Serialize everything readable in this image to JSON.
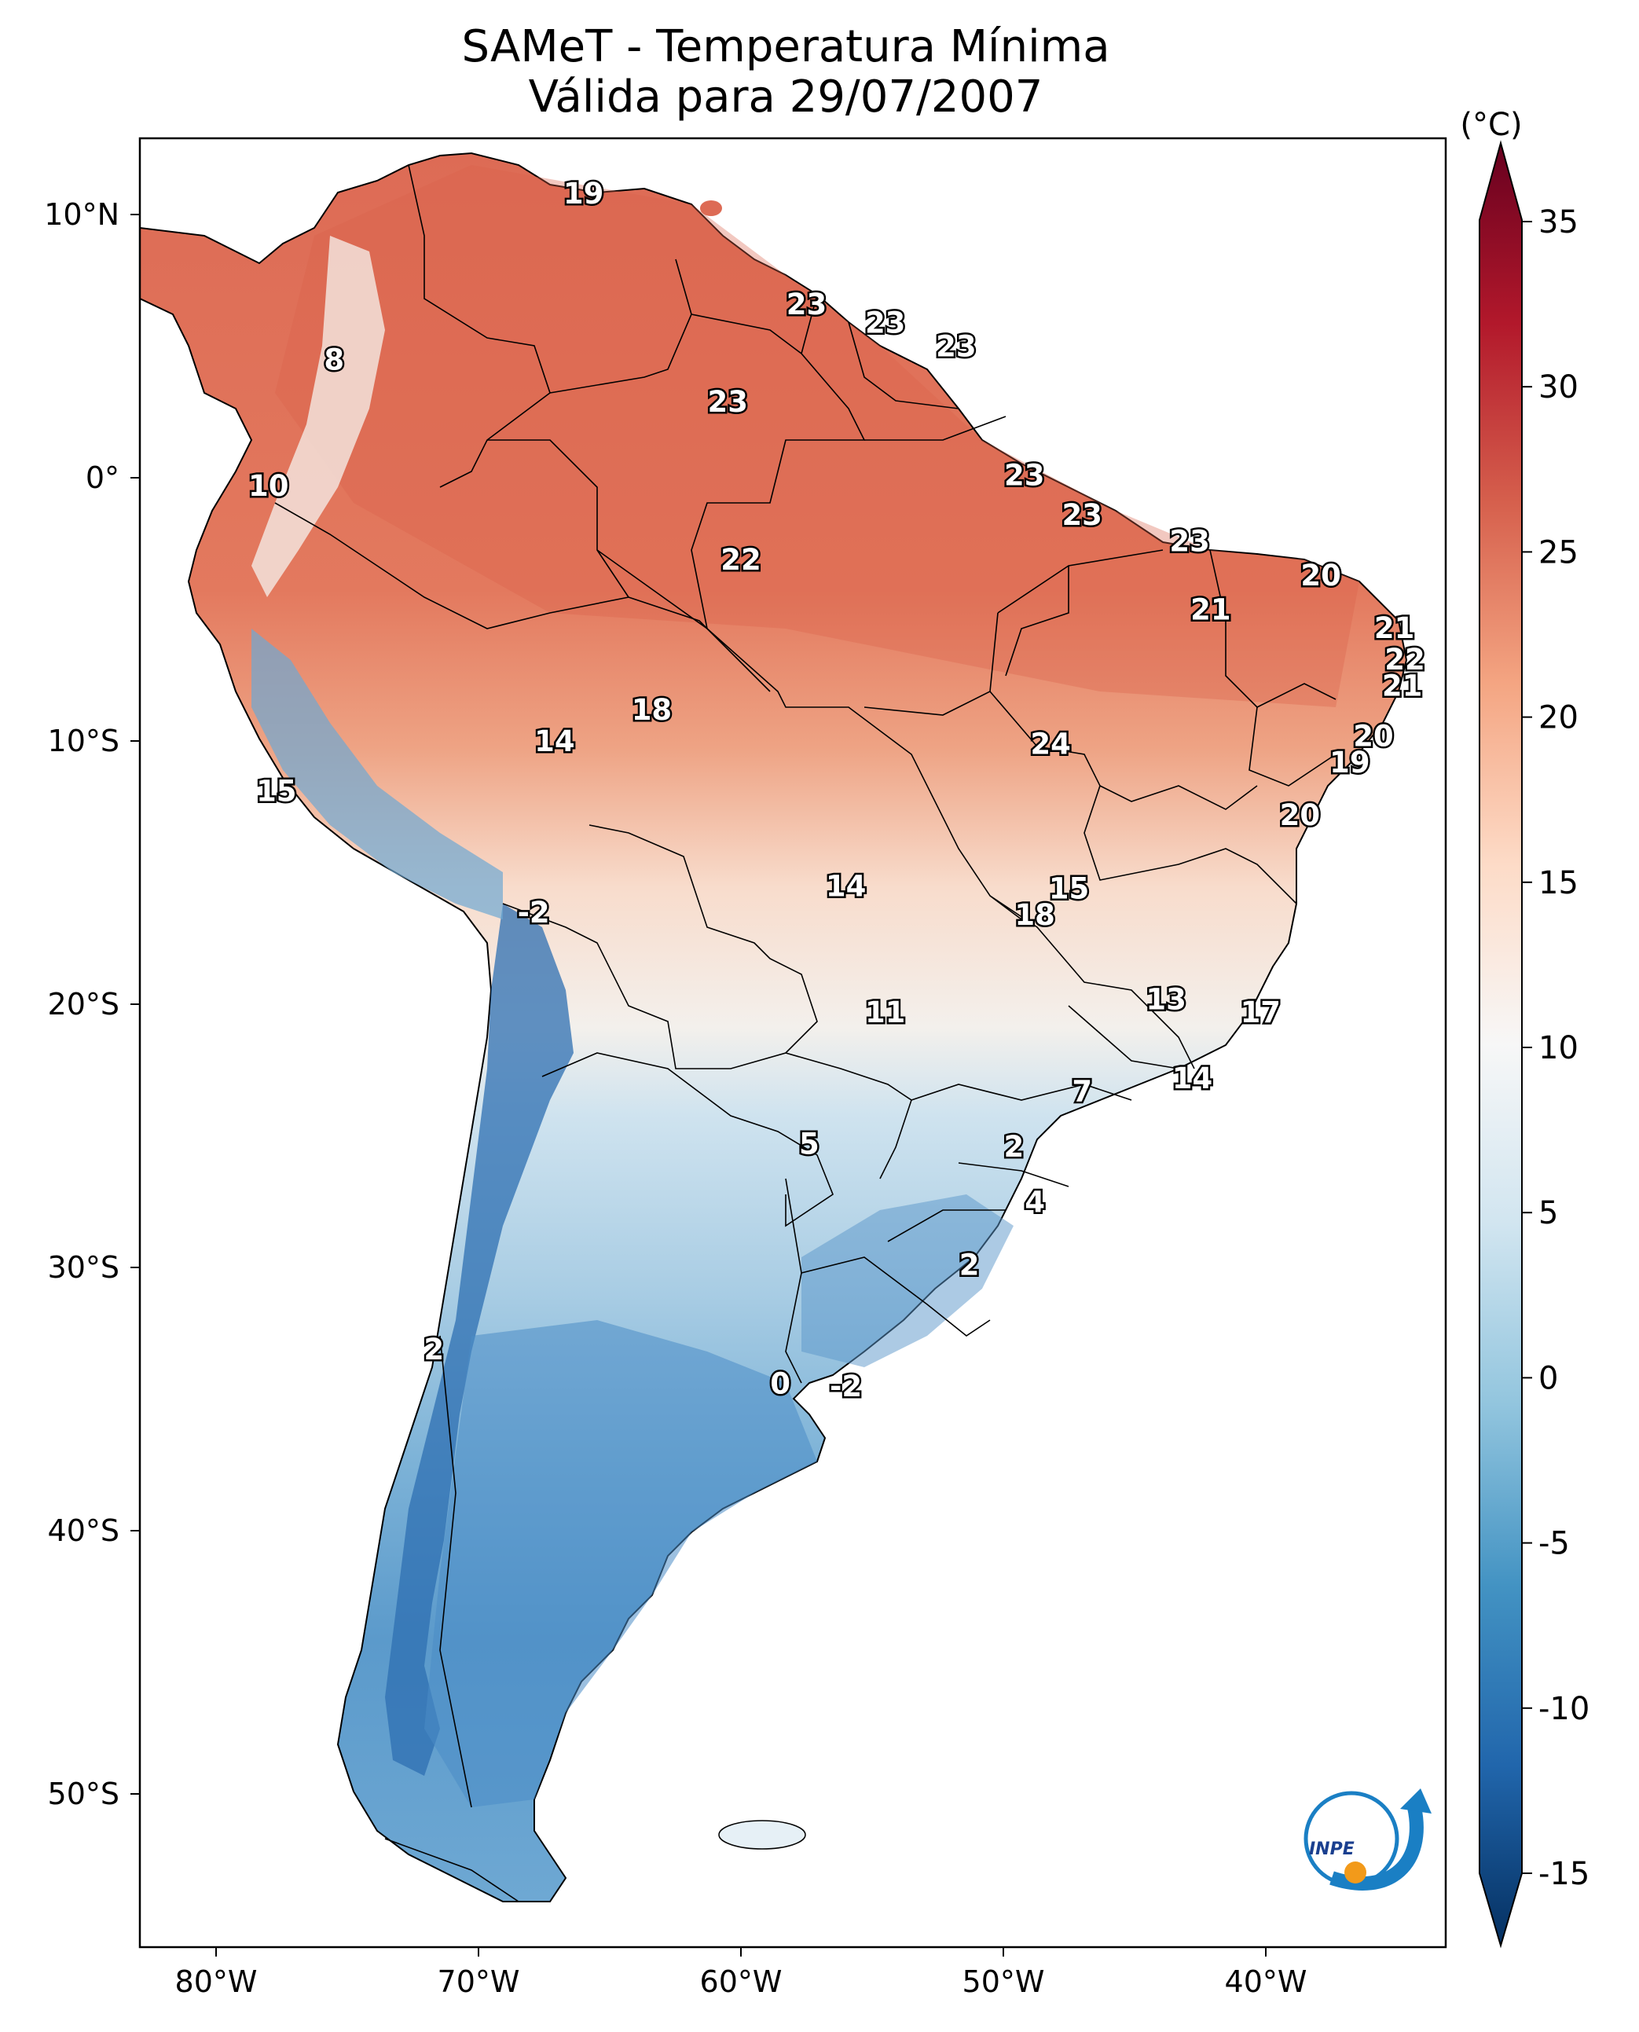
{
  "title": {
    "line1": "SAMeT - Temperatura Mínima",
    "line2": "Válida para 29/07/2007"
  },
  "colorbar": {
    "unit": "(°C)",
    "min": -15,
    "max": 35,
    "ticks": [
      "35",
      "30",
      "25",
      "20",
      "15",
      "10",
      "5",
      "0",
      "-5",
      "-10",
      "-15"
    ],
    "colors": [
      "#67001f",
      "#b2182b",
      "#d6604d",
      "#f4a582",
      "#fddbc7",
      "#f7f7f7",
      "#d1e5f0",
      "#92c5de",
      "#4393c3",
      "#2166ac",
      "#053061"
    ]
  },
  "axes": {
    "lon_ticks": [
      "80°W",
      "70°W",
      "60°W",
      "50°W",
      "40°W"
    ],
    "lat_ticks": [
      "10°N",
      "0°",
      "10°S",
      "20°S",
      "30°S",
      "40°S",
      "50°S"
    ]
  },
  "map_colors": {
    "north_warm": "#dd6b55",
    "center_warm": "#f0a080",
    "mild": "#f6d2c0",
    "neutral": "#f5f2ee",
    "cool": "#bcd8ea",
    "cold": "#5d9bcb",
    "andes": "#2e6fb1",
    "border": "#000000"
  },
  "logo": {
    "text": "INPE",
    "primary": "#1a7fc4",
    "accent": "#f29a1a"
  },
  "point_values": [
    {
      "t": "19",
      "lon": -66,
      "lat": 10.8
    },
    {
      "t": "8",
      "lon": -75.5,
      "lat": 4.5
    },
    {
      "t": "23",
      "lon": -57.5,
      "lat": 6.6
    },
    {
      "t": "23",
      "lon": -54.5,
      "lat": 5.9
    },
    {
      "t": "23",
      "lon": -51.8,
      "lat": 5.0
    },
    {
      "t": "23",
      "lon": -60.5,
      "lat": 2.9
    },
    {
      "t": "10",
      "lon": -78,
      "lat": -0.3
    },
    {
      "t": "23",
      "lon": -49.2,
      "lat": 0.1
    },
    {
      "t": "23",
      "lon": -47,
      "lat": -1.4
    },
    {
      "t": "22",
      "lon": -60,
      "lat": -3.1
    },
    {
      "t": "23",
      "lon": -42.9,
      "lat": -2.4
    },
    {
      "t": "20",
      "lon": -37.9,
      "lat": -3.7
    },
    {
      "t": "21",
      "lon": -42.1,
      "lat": -5.0
    },
    {
      "t": "21",
      "lon": -35.1,
      "lat": -5.7
    },
    {
      "t": "22",
      "lon": -34.7,
      "lat": -6.9
    },
    {
      "t": "21",
      "lon": -34.8,
      "lat": -7.9
    },
    {
      "t": "18",
      "lon": -63.4,
      "lat": -8.8
    },
    {
      "t": "14",
      "lon": -67.1,
      "lat": -10.0
    },
    {
      "t": "24",
      "lon": -48.2,
      "lat": -10.1
    },
    {
      "t": "20",
      "lon": -35.9,
      "lat": -9.8
    },
    {
      "t": "19",
      "lon": -36.8,
      "lat": -10.8
    },
    {
      "t": "15",
      "lon": -77.7,
      "lat": -11.9
    },
    {
      "t": "20",
      "lon": -38.7,
      "lat": -12.8
    },
    {
      "t": "14",
      "lon": -56,
      "lat": -15.5
    },
    {
      "t": "15",
      "lon": -47.5,
      "lat": -15.6
    },
    {
      "t": "-2",
      "lon": -67.9,
      "lat": -16.5
    },
    {
      "t": "18",
      "lon": -48.8,
      "lat": -16.6
    },
    {
      "t": "13",
      "lon": -43.8,
      "lat": -19.8
    },
    {
      "t": "11",
      "lon": -54.5,
      "lat": -20.3
    },
    {
      "t": "17",
      "lon": -40.2,
      "lat": -20.3
    },
    {
      "t": "14",
      "lon": -42.8,
      "lat": -22.8
    },
    {
      "t": "7",
      "lon": -47,
      "lat": -23.3
    },
    {
      "t": "5",
      "lon": -57.4,
      "lat": -25.3
    },
    {
      "t": "2",
      "lon": -49.6,
      "lat": -25.4
    },
    {
      "t": "4",
      "lon": -48.8,
      "lat": -27.5
    },
    {
      "t": "2",
      "lon": -51.3,
      "lat": -29.9
    },
    {
      "t": "2",
      "lon": -71.7,
      "lat": -33.1
    },
    {
      "t": "0",
      "lon": -58.5,
      "lat": -34.4
    },
    {
      "t": "-2",
      "lon": -56,
      "lat": -34.5
    }
  ]
}
